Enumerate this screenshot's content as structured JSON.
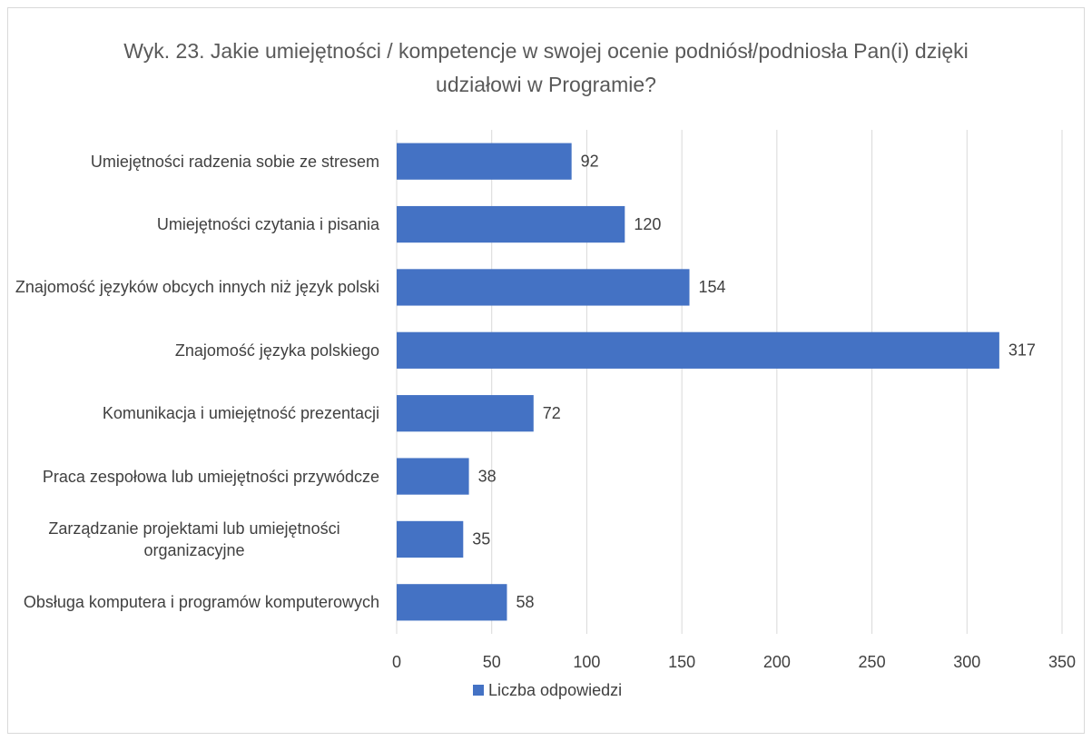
{
  "chart_data": {
    "type": "bar",
    "orientation": "horizontal",
    "title": "Wyk. 23. Jakie umiejętności / kompetencje w swojej ocenie podniósł/podniosła Pan(i) dzięki udziałowi w Programie?",
    "categories": [
      "Umiejętności radzenia sobie ze stresem",
      "Umiejętności czytania i pisania",
      "Znajomość języków obcych innych niż język polski",
      "Znajomość języka polskiego",
      "Komunikacja i umiejętność prezentacji",
      "Praca zespołowa lub umiejętności przywódcze",
      "Zarządzanie projektami lub umiejętności organizacyjne",
      "Obsługa komputera i programów komputerowych"
    ],
    "series": [
      {
        "name": "Liczba odpowiedzi",
        "color": "#4472c4",
        "values": [
          92,
          120,
          154,
          317,
          72,
          38,
          35,
          58
        ]
      }
    ],
    "xlim": [
      0,
      350
    ],
    "xticks": [
      0,
      50,
      100,
      150,
      200,
      250,
      300,
      350
    ],
    "grid": true,
    "legend": "bottom"
  }
}
